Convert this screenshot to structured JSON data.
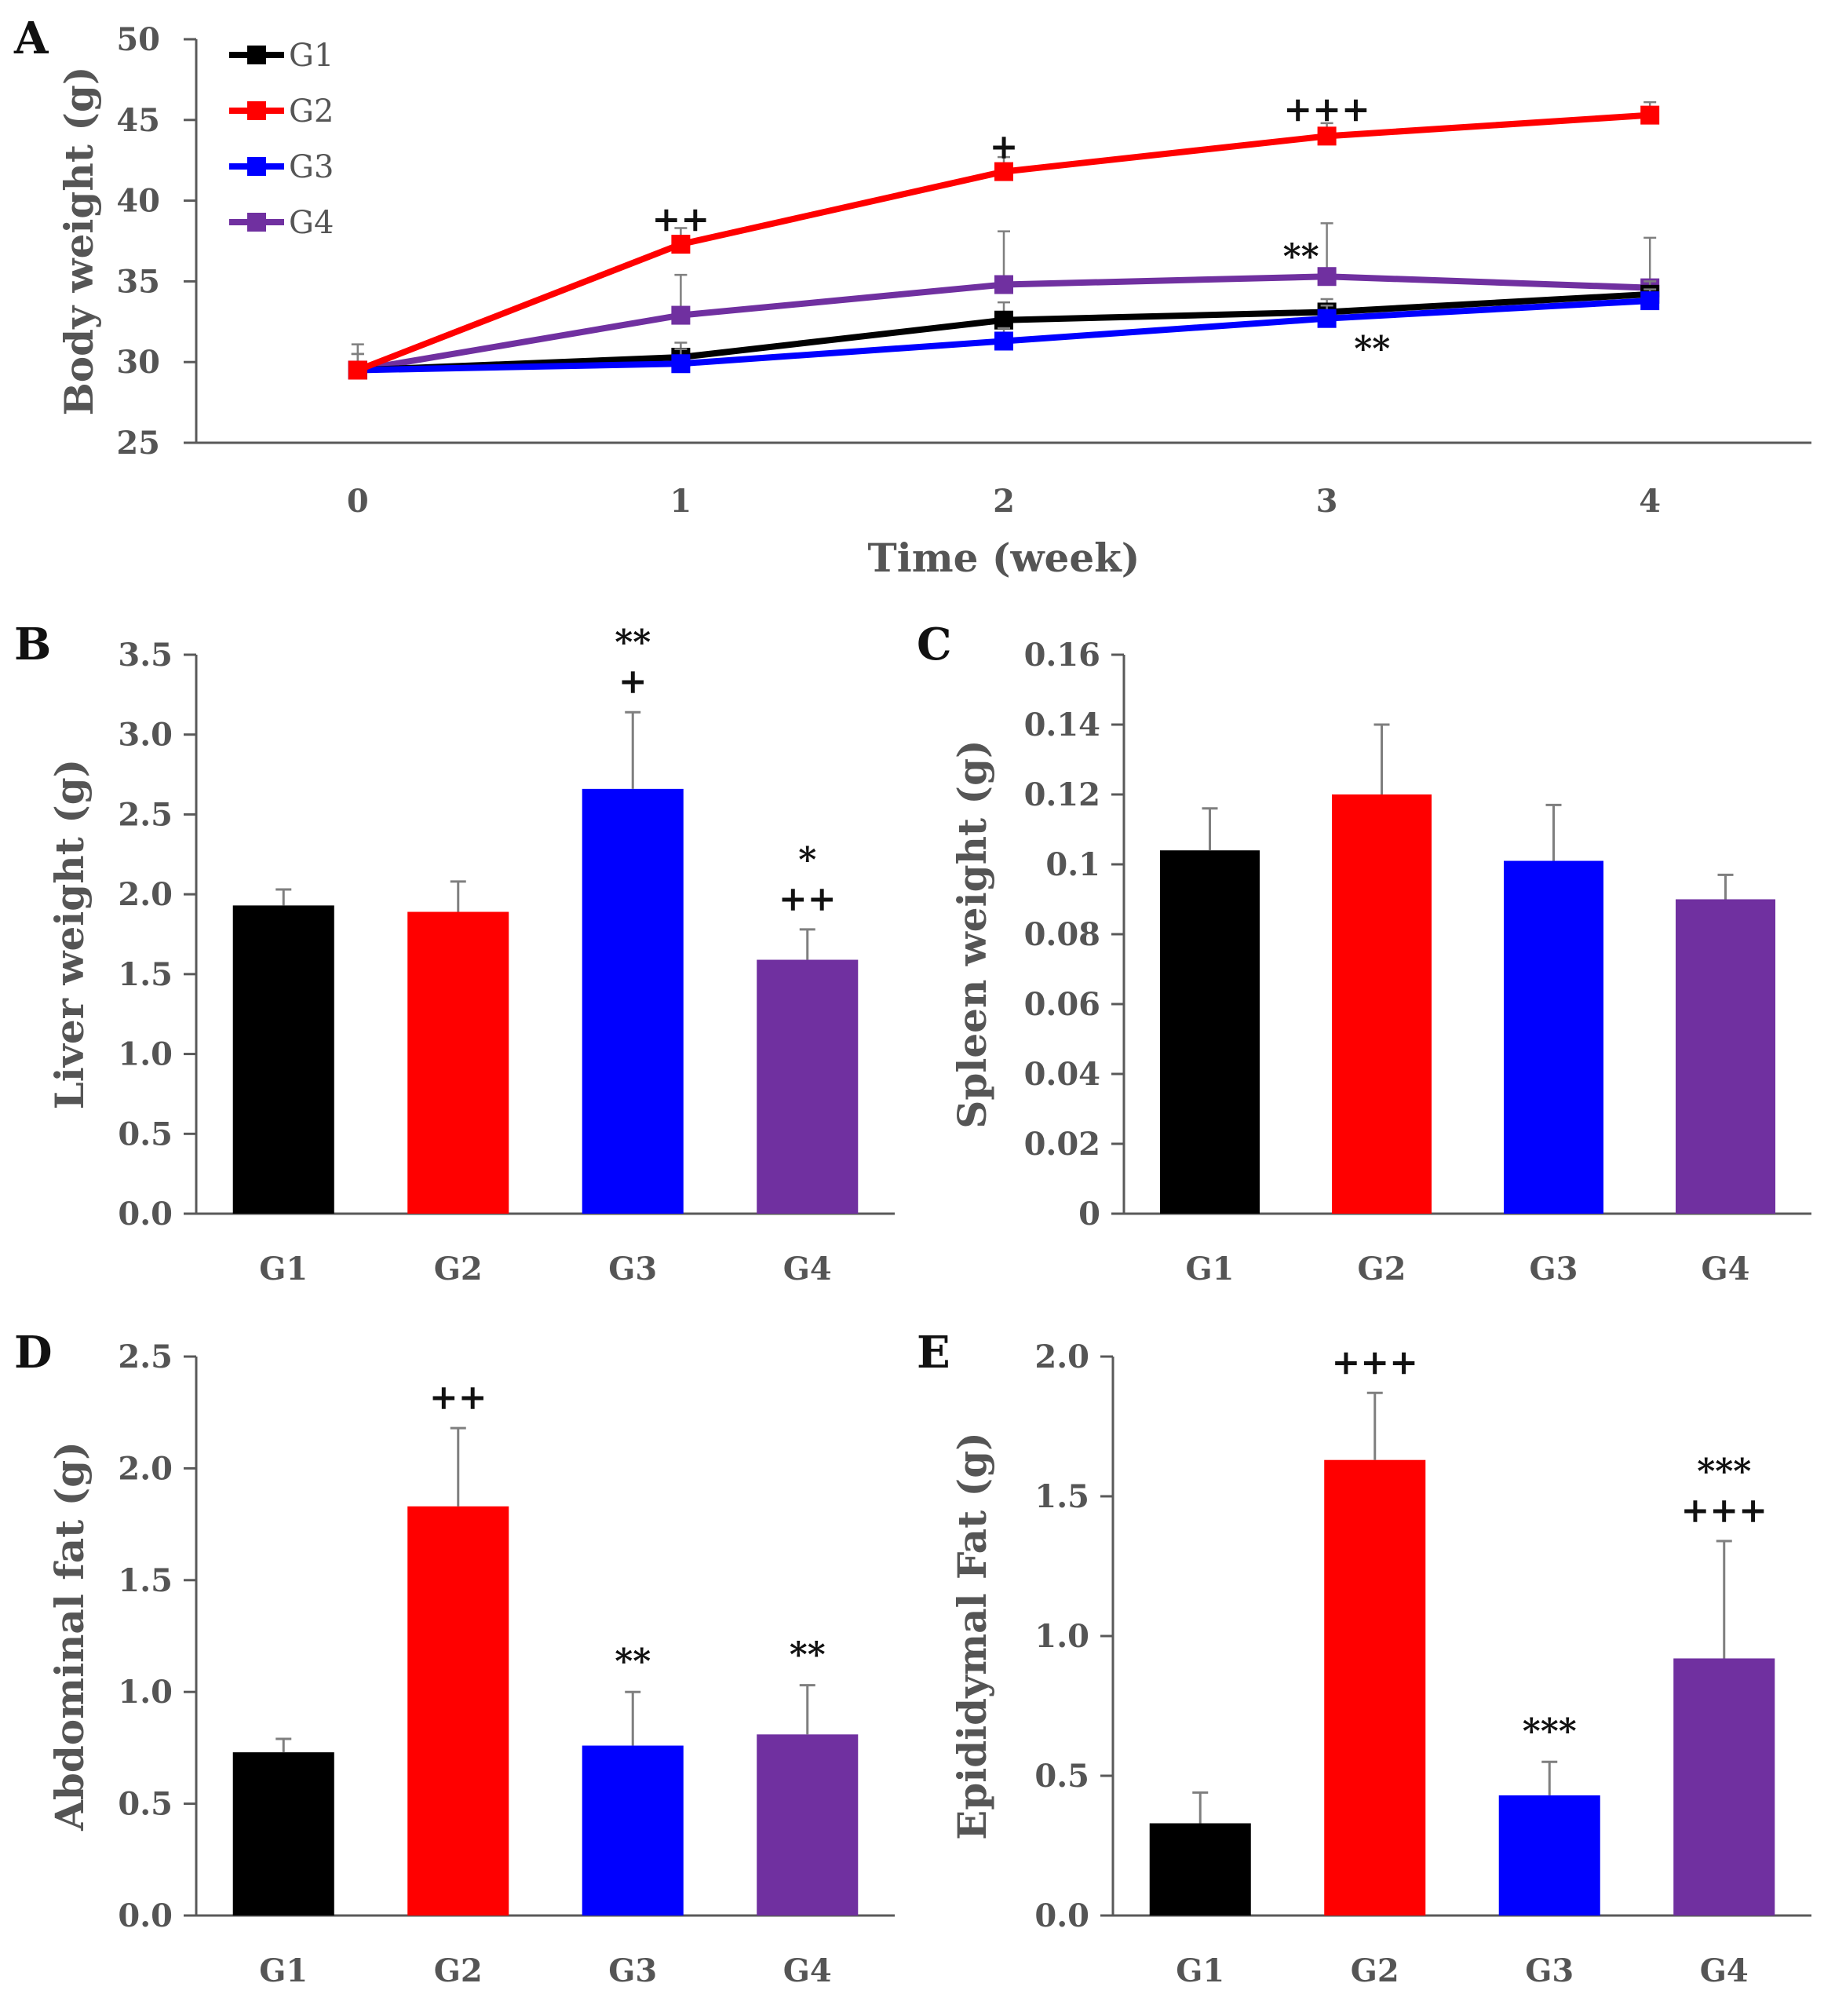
{
  "chart_data": [
    {
      "panel": "A",
      "type": "line",
      "xlabel": "Time (week)",
      "ylabel": "Body weight (g)",
      "x": [
        0,
        1,
        2,
        3,
        4
      ],
      "xlim": [
        -0.5,
        4.5
      ],
      "ylim": [
        25,
        50
      ],
      "yticks": [
        25,
        30,
        35,
        40,
        45,
        50
      ],
      "xticks": [
        0,
        1,
        2,
        3,
        4
      ],
      "series": [
        {
          "name": "G1",
          "color": "#000000",
          "values": [
            29.5,
            30.3,
            32.6,
            33.1,
            34.2
          ],
          "errors": [
            1.0,
            0.9,
            1.1,
            0.8,
            0.8
          ]
        },
        {
          "name": "G2",
          "color": "#ff0000",
          "values": [
            29.5,
            37.3,
            41.8,
            44.0,
            45.3
          ],
          "errors": [
            1.0,
            1.0,
            0.9,
            0.8,
            0.8
          ]
        },
        {
          "name": "G3",
          "color": "#0000ff",
          "values": [
            29.5,
            29.9,
            31.3,
            32.7,
            33.8
          ],
          "errors": [
            1.0,
            0.9,
            0.8,
            0.8,
            0.7
          ]
        },
        {
          "name": "G4",
          "color": "#7030a0",
          "values": [
            29.5,
            32.9,
            34.8,
            35.3,
            34.6
          ],
          "errors": [
            1.6,
            2.5,
            3.3,
            3.3,
            3.1
          ]
        }
      ],
      "annotations": [
        {
          "text": "++",
          "x": 1,
          "y": 38.8
        },
        {
          "text": "+",
          "x": 2,
          "y": 43.3
        },
        {
          "text": "+++",
          "x": 3,
          "y": 45.6
        },
        {
          "text": "**",
          "x": 2.92,
          "y": 36.5
        },
        {
          "text": "**",
          "x": 3.14,
          "y": 30.8
        }
      ]
    },
    {
      "panel": "B",
      "type": "bar",
      "xlabel": "",
      "ylabel": "Liver weight (g)",
      "categories": [
        "G1",
        "G2",
        "G3",
        "G4"
      ],
      "values": [
        1.93,
        1.89,
        2.66,
        1.59
      ],
      "errors": [
        0.1,
        0.19,
        0.48,
        0.19
      ],
      "colors": [
        "#000000",
        "#ff0000",
        "#0000ff",
        "#7030a0"
      ],
      "ylim": [
        0,
        3.5
      ],
      "yticks": [
        "0.0",
        "0.5",
        "1.0",
        "1.5",
        "2.0",
        "2.5",
        "3.0",
        "3.5"
      ],
      "annotations": [
        {
          "category": "G3",
          "lines": [
            "**",
            "+"
          ]
        },
        {
          "category": "G4",
          "lines": [
            "*",
            "++"
          ]
        }
      ]
    },
    {
      "panel": "C",
      "type": "bar",
      "xlabel": "",
      "ylabel": "Spleen weight (g)",
      "categories": [
        "G1",
        "G2",
        "G3",
        "G4"
      ],
      "values": [
        0.104,
        0.12,
        0.101,
        0.09
      ],
      "errors": [
        0.012,
        0.02,
        0.016,
        0.007
      ],
      "colors": [
        "#000000",
        "#ff0000",
        "#0000ff",
        "#7030a0"
      ],
      "ylim": [
        0,
        0.16
      ],
      "yticks": [
        "0",
        "0.02",
        "0.04",
        "0.06",
        "0.08",
        "0.1",
        "0.12",
        "0.14",
        "0.16"
      ],
      "annotations": []
    },
    {
      "panel": "D",
      "type": "bar",
      "xlabel": "",
      "ylabel": "Abdominal fat (g)",
      "categories": [
        "G1",
        "G2",
        "G3",
        "G4"
      ],
      "values": [
        0.73,
        1.83,
        0.76,
        0.81
      ],
      "errors": [
        0.06,
        0.35,
        0.24,
        0.22
      ],
      "colors": [
        "#000000",
        "#ff0000",
        "#0000ff",
        "#7030a0"
      ],
      "ylim": [
        0,
        2.5
      ],
      "yticks": [
        "0.0",
        "0.5",
        "1.0",
        "1.5",
        "2.0",
        "2.5"
      ],
      "annotations": [
        {
          "category": "G2",
          "lines": [
            "++"
          ]
        },
        {
          "category": "G3",
          "lines": [
            "**"
          ]
        },
        {
          "category": "G4",
          "lines": [
            "**"
          ]
        }
      ]
    },
    {
      "panel": "E",
      "type": "bar",
      "xlabel": "",
      "ylabel": "Epididymal Fat (g)",
      "categories": [
        "G1",
        "G2",
        "G3",
        "G4"
      ],
      "values": [
        0.33,
        1.63,
        0.43,
        0.92
      ],
      "errors": [
        0.11,
        0.24,
        0.12,
        0.42
      ],
      "colors": [
        "#000000",
        "#ff0000",
        "#0000ff",
        "#7030a0"
      ],
      "ylim": [
        0,
        2.0
      ],
      "yticks": [
        "0.0",
        "0.5",
        "1.0",
        "1.5",
        "2.0"
      ],
      "annotations": [
        {
          "category": "G2",
          "lines": [
            "+++"
          ]
        },
        {
          "category": "G3",
          "lines": [
            "***"
          ]
        },
        {
          "category": "G4",
          "lines": [
            "***",
            "+++"
          ]
        }
      ]
    }
  ]
}
